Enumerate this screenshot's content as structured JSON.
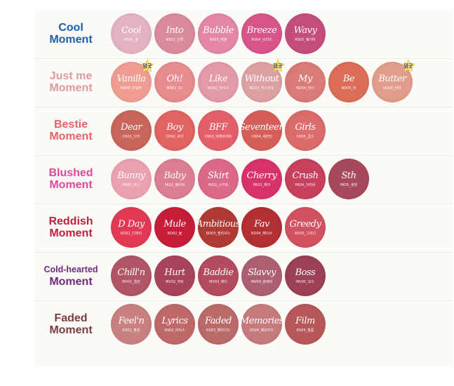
{
  "rows": [
    {
      "line1": "Cool",
      "line2": "Moment",
      "color": "#1d5fa8",
      "small": false,
      "swatches": [
        {
          "name": "Cool",
          "code": "RS01_쿨",
          "color": "#e3b3c2"
        },
        {
          "name": "Into",
          "code": "RS02_인투",
          "color": "#da8b9b"
        },
        {
          "name": "Bubble",
          "code": "RS03_버블",
          "color": "#e486a6"
        },
        {
          "name": "Breeze",
          "code": "RS04_브리즈",
          "color": "#d85489"
        },
        {
          "name": "Wavy",
          "code": "RS05_웨이비",
          "color": "#c54d7b"
        }
      ]
    },
    {
      "line1": "Just me",
      "line2": "Moment",
      "color": "#e0999c",
      "small": false,
      "swatches": [
        {
          "name": "Vanilla",
          "code": "ND00_바닐라",
          "color": "#ef9d92",
          "badge": "덤굿"
        },
        {
          "name": "Oh!",
          "code": "ND01_오!",
          "color": "#e78c8f"
        },
        {
          "name": "Like",
          "code": "ND02_라이크",
          "color": "#e499a8"
        },
        {
          "name": "Without",
          "code": "ND03_위드아웃",
          "color": "#dca0a3",
          "badge": "덤굿"
        },
        {
          "name": "My",
          "code": "ND04_마이",
          "color": "#d97b76"
        },
        {
          "name": "Be",
          "code": "ND05_비",
          "color": "#dc6d59"
        },
        {
          "name": "Butter",
          "code": "ND06_버터",
          "color": "#e29c8b",
          "badge": "덤굿"
        }
      ]
    },
    {
      "line1": "Bestie",
      "line2": "Moment",
      "color": "#e46268",
      "small": false,
      "swatches": [
        {
          "name": "Dear",
          "code": "CR01_디어",
          "color": "#c9655a"
        },
        {
          "name": "Boy",
          "code": "CR02_보이",
          "color": "#df6462"
        },
        {
          "name": "BFF",
          "code": "CR03_비에프에프",
          "color": "#e3606a"
        },
        {
          "name": "Seventeen",
          "code": "CR04_세븐틴",
          "color": "#d55e58"
        },
        {
          "name": "Girls",
          "code": "CR05_걸스",
          "color": "#dc6b6b"
        }
      ]
    },
    {
      "line1": "Blushed",
      "line2": "Moment",
      "color": "#e0489b",
      "small": false,
      "swatches": [
        {
          "name": "Bunny",
          "code": "PK00_버니",
          "color": "#eba1b0"
        },
        {
          "name": "Baby",
          "code": "PK01_베이비",
          "color": "#dd7d92"
        },
        {
          "name": "Skirt",
          "code": "PK02_스커트",
          "color": "#dc6988"
        },
        {
          "name": "Cherry",
          "code": "PK03_체리",
          "color": "#d9326a"
        },
        {
          "name": "Crush",
          "code": "PK04_크러쉬",
          "color": "#c8405c"
        },
        {
          "name": "Sth",
          "code": "PK05_썸띵",
          "color": "#a8485c"
        }
      ]
    },
    {
      "line1": "Reddish",
      "line2": "Moment",
      "color": "#c1203d",
      "small": false,
      "swatches": [
        {
          "name": "D Day",
          "code": "RD01_디데이",
          "color": "#e23a54"
        },
        {
          "name": "Mule",
          "code": "RD02_뮬",
          "color": "#c61e3a"
        },
        {
          "name": "Ambitious",
          "code": "RD03_앰비셔스",
          "color": "#b03a34"
        },
        {
          "name": "Fav",
          "code": "RD04_페이브",
          "color": "#b22f32"
        },
        {
          "name": "Greedy",
          "code": "RD05_그리디",
          "color": "#d15260"
        }
      ]
    },
    {
      "line1": "Cold-hearted",
      "line2": "Moment",
      "color": "#6e2a7a",
      "small": true,
      "swatches": [
        {
          "name": "Chill'n",
          "code": "MV01_칠린",
          "color": "#b15567"
        },
        {
          "name": "Hurt",
          "code": "MV02_허트",
          "color": "#a8445a"
        },
        {
          "name": "Baddie",
          "code": "MV03_배디",
          "color": "#b44a5d"
        },
        {
          "name": "Slavvy",
          "code": "MV04_슬래비",
          "color": "#ad5f72"
        },
        {
          "name": "Boss",
          "code": "MV05_보스",
          "color": "#9b4055"
        }
      ]
    },
    {
      "line1": "Faded",
      "line2": "Moment",
      "color": "#7a3d3e",
      "small": false,
      "swatches": [
        {
          "name": "Feel'n",
          "code": "RS01_필린",
          "color": "#c98081"
        },
        {
          "name": "Lyrics",
          "code": "RS02_리릭스",
          "color": "#bf6869"
        },
        {
          "name": "Faded",
          "code": "RS03_페이디드",
          "color": "#ba6a68"
        },
        {
          "name": "Memories",
          "code": "RS04_메모리즈",
          "color": "#c57b7c"
        },
        {
          "name": "Film",
          "code": "RS05_필름",
          "color": "#b8575a"
        }
      ]
    }
  ]
}
